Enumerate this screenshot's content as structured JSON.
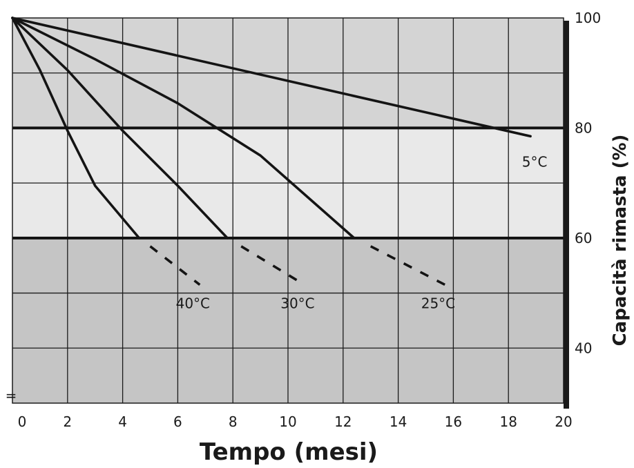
{
  "chart_data": {
    "type": "line",
    "title": "",
    "xlabel": "Tempo (mesi)",
    "ylabel": "Capacità rimasta (%)",
    "xlim": [
      0,
      20
    ],
    "ylim": [
      30,
      100
    ],
    "x_ticks": [
      "0",
      "2",
      "4",
      "6",
      "8",
      "10",
      "12",
      "14",
      "16",
      "18",
      "20"
    ],
    "y_ticks": [
      "40",
      "60",
      "80",
      "100"
    ],
    "grid": true,
    "y_axis_side": "right",
    "bands": [
      {
        "from": 80,
        "to": 100,
        "color": "#d4d4d4"
      },
      {
        "from": 60,
        "to": 80,
        "color": "#e9e9e9"
      },
      {
        "from": 30,
        "to": 60,
        "color": "#c5c5c5"
      }
    ],
    "reference_lines": [
      80,
      60
    ],
    "series": [
      {
        "name": "5°C",
        "solid": [
          [
            0,
            100
          ],
          [
            18.8,
            78.5
          ]
        ],
        "dashed": []
      },
      {
        "name": "25°C",
        "solid": [
          [
            0,
            100
          ],
          [
            3,
            92.5
          ],
          [
            6,
            84.5
          ],
          [
            9,
            75
          ],
          [
            12.4,
            60
          ]
        ],
        "dashed": [
          [
            13,
            58.5
          ],
          [
            15.7,
            51.5
          ]
        ]
      },
      {
        "name": "30°C",
        "solid": [
          [
            0,
            100
          ],
          [
            2,
            90.5
          ],
          [
            4,
            79.5
          ],
          [
            6,
            69.5
          ],
          [
            7.8,
            60
          ]
        ],
        "dashed": [
          [
            8.3,
            58.5
          ],
          [
            10.6,
            51.5
          ]
        ]
      },
      {
        "name": "40°C",
        "solid": [
          [
            0,
            100
          ],
          [
            1,
            90.5
          ],
          [
            2,
            79.5
          ],
          [
            3,
            69.5
          ],
          [
            4.6,
            60
          ]
        ],
        "dashed": [
          [
            5,
            58.5
          ],
          [
            6.8,
            51.5
          ]
        ]
      }
    ],
    "axis_break_symbol": "="
  }
}
